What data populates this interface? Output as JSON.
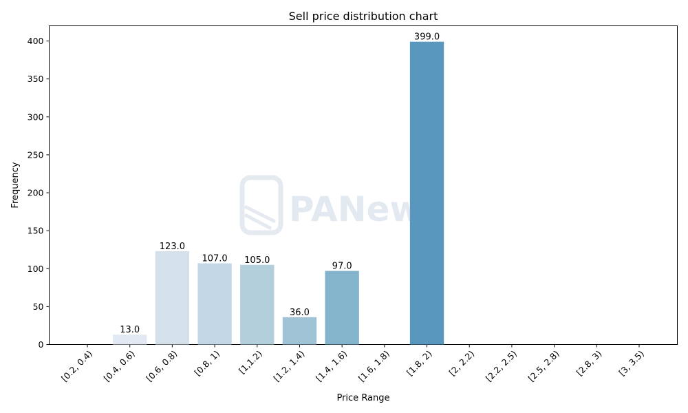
{
  "watermark": {
    "text": "PANews"
  },
  "chart_data": {
    "type": "bar",
    "title": "Sell price distribution chart",
    "xlabel": "Price Range",
    "ylabel": "Frequency",
    "categories": [
      "[0.2, 0.4)",
      "[0.4, 0.6)",
      "[0.6, 0.8)",
      "[0.8, 1)",
      "[1,1.2)",
      "[1.2, 1.4)",
      "[1.4, 1.6)",
      "[1.6, 1.8)",
      "[1.8, 2)",
      "[2, 2.2)",
      "[2.2, 2.5)",
      "[2.5, 2.8)",
      "[2.8, 3)",
      "[3, 3.5)"
    ],
    "values": [
      0,
      13,
      123,
      107,
      105,
      36,
      97,
      0,
      399,
      0,
      0,
      0,
      0,
      0
    ],
    "data_labels": [
      "",
      "13.0",
      "123.0",
      "107.0",
      "105.0",
      "36.0",
      "97.0",
      "",
      "399.0",
      "",
      "",
      "",
      "",
      ""
    ],
    "bar_colors": [
      "#f1f4f9",
      "#e2e9f2",
      "#d4e0ea",
      "#c4d7e6",
      "#b4cfdc",
      "#9fc2d4",
      "#84b3cc",
      "#72a6c6",
      "#5a97be",
      "#4a89b6",
      "#3d7eae",
      "#3273a6",
      "#2b6a9c",
      "#255f90"
    ],
    "ylim": [
      0,
      420
    ],
    "yticks": [
      0,
      50,
      100,
      150,
      200,
      250,
      300,
      350,
      400
    ],
    "grid": false,
    "legend": "none"
  }
}
